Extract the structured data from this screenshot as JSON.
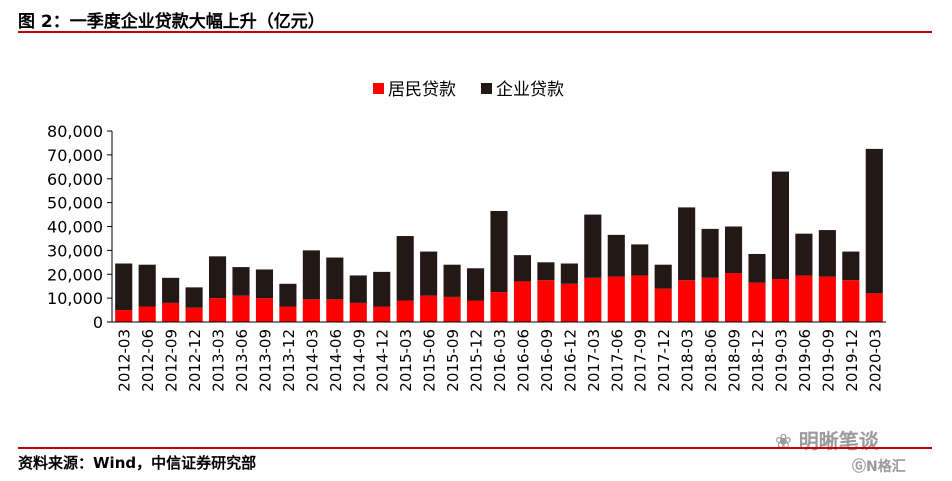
{
  "header": {
    "title": "图 2：一季度企业贷款大幅上升（亿元）"
  },
  "footer": {
    "source": "资料来源：Wind，中信证券研究部"
  },
  "watermark": {
    "text1": "❀ 明晰笔谈",
    "text2": "ⒼN格汇"
  },
  "colors": {
    "rule": "#c00000",
    "household": "#ff0000",
    "corporate": "#231815"
  },
  "chart_data": {
    "type": "bar",
    "stacked": true,
    "categories": [
      "2012-03",
      "2012-06",
      "2012-09",
      "2012-12",
      "2013-03",
      "2013-06",
      "2013-09",
      "2013-12",
      "2014-03",
      "2014-06",
      "2014-09",
      "2014-12",
      "2015-03",
      "2015-06",
      "2015-09",
      "2015-12",
      "2016-03",
      "2016-06",
      "2016-09",
      "2016-12",
      "2017-03",
      "2017-06",
      "2017-09",
      "2017-12",
      "2018-03",
      "2018-06",
      "2018-09",
      "2018-12",
      "2019-03",
      "2019-06",
      "2019-09",
      "2019-12",
      "2020-03"
    ],
    "series": [
      {
        "name": "居民贷款",
        "color": "#ff0000",
        "values": [
          5000,
          6500,
          8000,
          6000,
          10000,
          11000,
          10000,
          6500,
          9500,
          9500,
          8000,
          6500,
          9000,
          11000,
          10500,
          9000,
          12500,
          17000,
          17500,
          16000,
          18500,
          19000,
          19500,
          14000,
          17500,
          18500,
          20500,
          16500,
          18000,
          19500,
          19000,
          17500,
          12000
        ]
      },
      {
        "name": "企业贷款",
        "color": "#231815",
        "values": [
          19500,
          17500,
          10500,
          8500,
          17500,
          12000,
          12000,
          9500,
          20500,
          17500,
          11500,
          14500,
          27000,
          18500,
          13500,
          13500,
          34000,
          11000,
          7500,
          8500,
          26500,
          17500,
          13000,
          10000,
          30500,
          20500,
          19500,
          12000,
          45000,
          17500,
          19500,
          12000,
          60500
        ]
      }
    ],
    "ylim": [
      0,
      80000
    ],
    "yticks": [
      0,
      10000,
      20000,
      30000,
      40000,
      50000,
      60000,
      70000,
      80000
    ],
    "ytick_labels": [
      "0",
      "10,000",
      "20,000",
      "30,000",
      "40,000",
      "50,000",
      "60,000",
      "70,000",
      "80,000"
    ],
    "legend_position": "top-center",
    "grid": false
  }
}
